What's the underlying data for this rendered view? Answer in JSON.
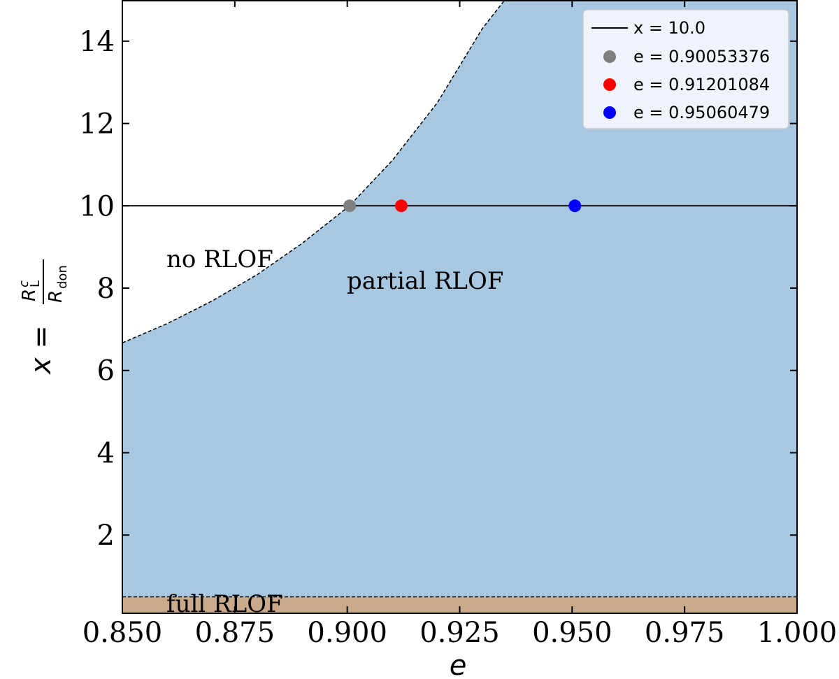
{
  "chart_data": {
    "type": "area",
    "xlabel": "e",
    "ylabel_main": "x = ",
    "ylabel_num": "R",
    "ylabel_num_sup": "c",
    "ylabel_num_sub": "L",
    "ylabel_den": "R",
    "ylabel_den_sub": "don",
    "xlim": [
      0.85,
      1.0
    ],
    "ylim": [
      0.1,
      15.0
    ],
    "xticks": [
      "0.850",
      "0.875",
      "0.900",
      "0.925",
      "0.950",
      "0.975",
      "1.000"
    ],
    "xtick_values": [
      0.85,
      0.875,
      0.9,
      0.925,
      0.95,
      0.975,
      1.0
    ],
    "yticks": [
      "2",
      "4",
      "6",
      "8",
      "10",
      "12",
      "14"
    ],
    "ytick_values": [
      2,
      4,
      6,
      8,
      10,
      12,
      14
    ],
    "regions": [
      {
        "name": "no RLOF",
        "label": "no RLOF",
        "color": "#ffffff"
      },
      {
        "name": "partial RLOF",
        "label": "partial RLOF",
        "color": "#a8c8e1"
      },
      {
        "name": "full RLOF",
        "label": "full RLOF",
        "color": "#c9ab8c",
        "y_range": [
          0.1,
          0.5
        ]
      }
    ],
    "boundary_curve": {
      "style": "dashed",
      "x": [
        0.85,
        0.86,
        0.87,
        0.88,
        0.89,
        0.9005,
        0.91,
        0.92,
        0.93,
        0.935
      ],
      "y": [
        6.67,
        7.14,
        7.69,
        8.33,
        9.09,
        10.0,
        11.1,
        12.5,
        14.3,
        15.0
      ]
    },
    "full_rlof_boundary": {
      "style": "dashed",
      "y": 0.5
    },
    "hline": {
      "y": 10.0,
      "label": "x = 10.0",
      "color": "#000000"
    },
    "points": [
      {
        "name": "e = 0.90053376",
        "x": 0.90053376,
        "y": 10.0,
        "color": "#808080"
      },
      {
        "name": "e = 0.91201084",
        "x": 0.91201084,
        "y": 10.0,
        "color": "#ff0000"
      },
      {
        "name": "e = 0.95060479",
        "x": 0.95060479,
        "y": 10.0,
        "color": "#0000ff"
      }
    ],
    "legend": {
      "placement": "top-right",
      "entries": [
        "x = 10.0",
        "e = 0.90053376",
        "e = 0.91201084",
        "e = 0.95060479"
      ]
    },
    "grid": false
  }
}
